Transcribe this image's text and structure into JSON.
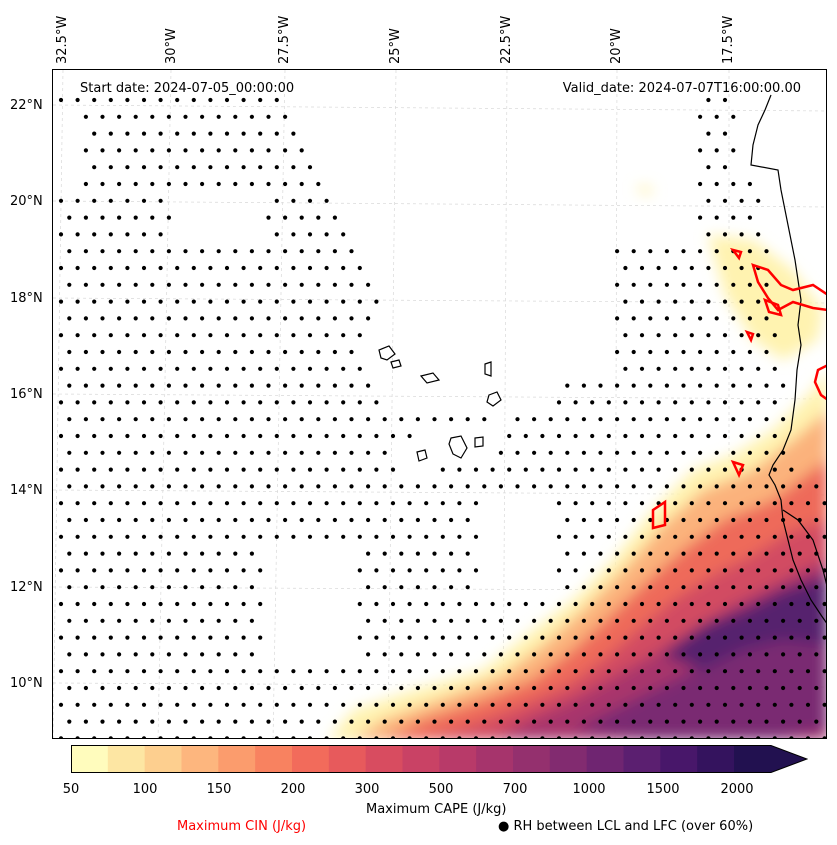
{
  "map": {
    "start_date": "Start date: 2024-07-05_00:00:00",
    "valid_date": "Valid_date: 2024-07-07T16:00:00.00",
    "lon_labels": [
      "32.5°W",
      "30°W",
      "27.5°W",
      "25°W",
      "22.5°W",
      "20°W",
      "17.5°W"
    ],
    "lat_labels": [
      "22°N",
      "20°N",
      "18°N",
      "16°N",
      "14°N",
      "12°N",
      "10°N"
    ]
  },
  "colorbar": {
    "title": "Maximum CAPE (J/kg)",
    "tick_labels": [
      "50",
      "100",
      "150",
      "200",
      "300",
      "500",
      "700",
      "1000",
      "1500",
      "2000"
    ],
    "colors": [
      "#fffcbd",
      "#fde6a3",
      "#fdcf8f",
      "#fdb67e",
      "#fb9c6d",
      "#f88260",
      "#f26b5b",
      "#e75a5c",
      "#d84c60",
      "#c94265",
      "#b83a69",
      "#a6346c",
      "#94306e",
      "#822b70",
      "#6f2571",
      "#5b1f70",
      "#48176a",
      "#34135e",
      "#221150"
    ],
    "extend": "max"
  },
  "legend": {
    "cin_label": "Maximum CIN (J/kg)",
    "cin_color": "#ff0000",
    "rh_label": "● RH between LCL and LFC (over 60%)"
  }
}
